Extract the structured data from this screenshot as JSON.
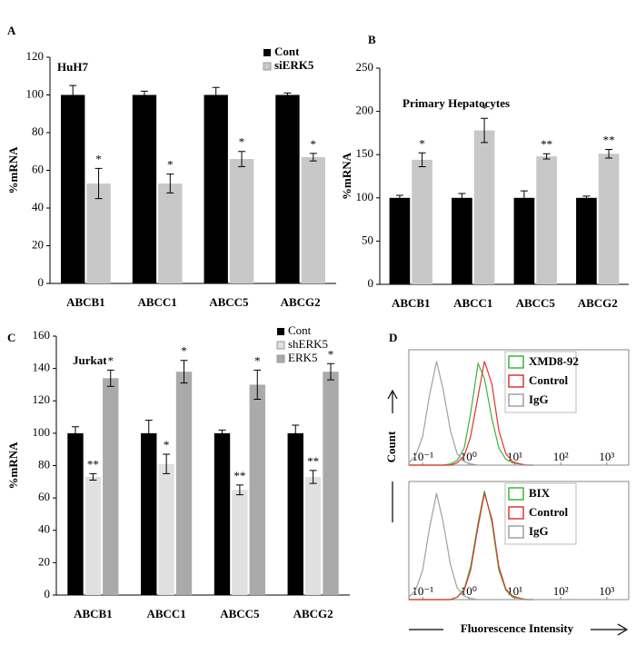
{
  "chart_data": [
    {
      "type": "bar",
      "panel": "A",
      "title": "HuH7",
      "ylabel": "%mRNA",
      "categories": [
        "ABCB1",
        "ABCC1",
        "ABCC5",
        "ABCG2"
      ],
      "ylim": [
        0,
        120
      ],
      "yticks": [
        0,
        20,
        40,
        60,
        80,
        100,
        120
      ],
      "legend": "top-right",
      "series": [
        {
          "name": "Cont",
          "color": "#000000",
          "values": [
            100,
            100,
            100,
            100
          ],
          "errors": [
            5,
            2,
            4,
            1
          ]
        },
        {
          "name": "siERK5",
          "color": "#c8c8c8",
          "values": [
            53,
            53,
            66,
            67
          ],
          "errors": [
            8,
            5,
            4,
            2
          ],
          "stars": [
            "*",
            "*",
            "*",
            "*"
          ]
        }
      ]
    },
    {
      "type": "bar",
      "panel": "B",
      "title": "Primary Hepatocytes",
      "ylabel": "%mRNA",
      "categories": [
        "ABCB1",
        "ABCC1",
        "ABCC5",
        "ABCG2"
      ],
      "ylim": [
        0,
        250
      ],
      "yticks": [
        0,
        50,
        100,
        150,
        200,
        250
      ],
      "series": [
        {
          "color": "#000000",
          "values": [
            100,
            100,
            100,
            100
          ],
          "errors": [
            3,
            5,
            8,
            2
          ]
        },
        {
          "color": "#c8c8c8",
          "values": [
            144,
            178,
            148,
            151
          ],
          "errors": [
            8,
            14,
            3,
            5
          ],
          "stars": [
            "*",
            "*",
            "**",
            "**"
          ]
        }
      ]
    },
    {
      "type": "bar",
      "panel": "C",
      "title": "Jurkat",
      "ylabel": "%mRNA",
      "categories": [
        "ABCB1",
        "ABCC1",
        "ABCC5",
        "ABCG2"
      ],
      "ylim": [
        0,
        160
      ],
      "yticks": [
        0,
        20,
        40,
        60,
        80,
        100,
        120,
        140,
        160
      ],
      "legend": "top-right",
      "series": [
        {
          "name": "Cont",
          "color": "#000000",
          "values": [
            100,
            100,
            100,
            100
          ],
          "errors": [
            4,
            8,
            2,
            5
          ]
        },
        {
          "name": "shERK5",
          "color": "#e0e0e0",
          "values": [
            73,
            81,
            65,
            73
          ],
          "errors": [
            2,
            6,
            3,
            4
          ],
          "stars": [
            "**",
            "*",
            "**",
            "**"
          ]
        },
        {
          "name": "ERK5",
          "color": "#aaaaaa",
          "values": [
            134,
            138,
            130,
            138
          ],
          "errors": [
            5,
            7,
            9,
            5
          ],
          "stars": [
            "*",
            "*",
            "*",
            "*"
          ]
        }
      ]
    },
    {
      "type": "line",
      "panel": "D",
      "ylabel": "Count",
      "xlog": true,
      "x": [
        0.05,
        0.07,
        0.1,
        0.14,
        0.2,
        0.28,
        0.4,
        0.56,
        0.8,
        1.1,
        1.6,
        2.2,
        3.2,
        4.5,
        6.4,
        9,
        13,
        18,
        25
      ],
      "xlim": [
        0.05,
        3000
      ],
      "ylim": [
        0,
        100
      ],
      "legend": "top-right",
      "xticks": [
        {
          "value": 0.1,
          "label": "10⁻¹"
        },
        {
          "value": 1,
          "label": "10⁰"
        },
        {
          "value": 10,
          "label": "10¹"
        },
        {
          "value": 100,
          "label": "10²"
        },
        {
          "value": 1000,
          "label": "10³"
        }
      ],
      "series": [
        {
          "name": "XMD8-92",
          "color": "#3cb43c",
          "values": [
            0,
            0,
            0,
            0,
            0,
            0,
            1,
            4,
            15,
            45,
            88,
            75,
            40,
            15,
            5,
            2,
            1,
            0,
            0
          ]
        },
        {
          "name": "Control",
          "color": "#e53030",
          "values": [
            0,
            0,
            0,
            0,
            0,
            0,
            0,
            2,
            8,
            25,
            60,
            90,
            70,
            30,
            10,
            3,
            1,
            0,
            0
          ]
        },
        {
          "name": "IgG",
          "color": "#a0a0a0",
          "values": [
            2,
            8,
            25,
            60,
            90,
            65,
            30,
            10,
            3,
            1,
            0,
            0,
            0,
            0,
            0,
            0,
            0,
            0,
            0
          ]
        }
      ]
    },
    {
      "type": "line",
      "xlabel": "Fluorescence Intensity",
      "xlog": true,
      "x": [
        0.05,
        0.07,
        0.1,
        0.14,
        0.2,
        0.28,
        0.4,
        0.56,
        0.8,
        1.1,
        1.6,
        2.2,
        3.2,
        4.5,
        6.4,
        9,
        13,
        18,
        25
      ],
      "xlim": [
        0.05,
        3000
      ],
      "ylim": [
        0,
        100
      ],
      "legend": "top-right",
      "xticks": [
        {
          "value": 0.1,
          "label": "10⁻¹"
        },
        {
          "value": 1,
          "label": "10⁰"
        },
        {
          "value": 10,
          "label": "10¹"
        },
        {
          "value": 100,
          "label": "10²"
        },
        {
          "value": 1000,
          "label": "10³"
        }
      ],
      "series": [
        {
          "name": "BIX",
          "color": "#3cb43c",
          "values": [
            0,
            0,
            0,
            0,
            0,
            0,
            0,
            2,
            9,
            28,
            65,
            92,
            65,
            25,
            8,
            2,
            1,
            0,
            0
          ]
        },
        {
          "name": "Control",
          "color": "#e53030",
          "values": [
            0,
            0,
            0,
            0,
            0,
            0,
            0,
            2,
            8,
            25,
            62,
            90,
            68,
            28,
            9,
            3,
            1,
            0,
            0
          ]
        },
        {
          "name": "IgG",
          "color": "#a0a0a0",
          "values": [
            2,
            8,
            25,
            60,
            90,
            65,
            30,
            10,
            3,
            1,
            0,
            0,
            0,
            0,
            0,
            0,
            0,
            0,
            0
          ]
        }
      ]
    }
  ]
}
